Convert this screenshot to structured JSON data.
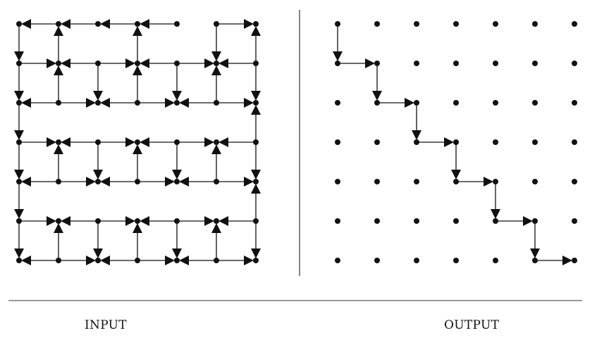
{
  "grid": {
    "rows": 7,
    "cols": 7
  },
  "colors": {
    "ink": "#111111"
  },
  "input": {
    "label": "INPUT",
    "edges": [
      {
        "r": 0,
        "c": 0,
        "d": "S"
      },
      {
        "r": 0,
        "c": 1,
        "d": "W"
      },
      {
        "r": 0,
        "c": 2,
        "d": "W"
      },
      {
        "r": 0,
        "c": 3,
        "d": "W"
      },
      {
        "r": 0,
        "c": 4,
        "d": "W"
      },
      {
        "r": 0,
        "c": 5,
        "d": "E"
      },
      {
        "r": 0,
        "c": 5,
        "d": "S"
      },
      {
        "r": 1,
        "c": 1,
        "d": "N"
      },
      {
        "r": 1,
        "c": 3,
        "d": "N"
      },
      {
        "r": 1,
        "c": 0,
        "d": "S"
      },
      {
        "r": 1,
        "c": 0,
        "d": "E"
      },
      {
        "r": 1,
        "c": 2,
        "d": "W"
      },
      {
        "r": 1,
        "c": 2,
        "d": "E"
      },
      {
        "r": 1,
        "c": 4,
        "d": "W"
      },
      {
        "r": 1,
        "c": 4,
        "d": "E"
      },
      {
        "r": 1,
        "c": 6,
        "d": "W"
      },
      {
        "r": 1,
        "c": 2,
        "d": "S"
      },
      {
        "r": 1,
        "c": 4,
        "d": "S"
      },
      {
        "r": 1,
        "c": 6,
        "d": "N"
      },
      {
        "r": 1,
        "c": 6,
        "d": "S"
      },
      {
        "r": 2,
        "c": 1,
        "d": "W"
      },
      {
        "r": 2,
        "c": 1,
        "d": "E"
      },
      {
        "r": 2,
        "c": 3,
        "d": "W"
      },
      {
        "r": 2,
        "c": 3,
        "d": "E"
      },
      {
        "r": 2,
        "c": 5,
        "d": "W"
      },
      {
        "r": 2,
        "c": 5,
        "d": "E"
      },
      {
        "r": 2,
        "c": 1,
        "d": "N"
      },
      {
        "r": 2,
        "c": 3,
        "d": "N"
      },
      {
        "r": 2,
        "c": 5,
        "d": "N"
      },
      {
        "r": 2,
        "c": 0,
        "d": "S"
      },
      {
        "r": 3,
        "c": 0,
        "d": "E"
      },
      {
        "r": 3,
        "c": 2,
        "d": "W"
      },
      {
        "r": 3,
        "c": 2,
        "d": "E"
      },
      {
        "r": 3,
        "c": 4,
        "d": "W"
      },
      {
        "r": 3,
        "c": 4,
        "d": "E"
      },
      {
        "r": 3,
        "c": 6,
        "d": "W"
      },
      {
        "r": 3,
        "c": 2,
        "d": "S"
      },
      {
        "r": 3,
        "c": 4,
        "d": "S"
      },
      {
        "r": 3,
        "c": 6,
        "d": "N"
      },
      {
        "r": 3,
        "c": 6,
        "d": "S"
      },
      {
        "r": 3,
        "c": 0,
        "d": "S"
      },
      {
        "r": 4,
        "c": 1,
        "d": "W"
      },
      {
        "r": 4,
        "c": 1,
        "d": "E"
      },
      {
        "r": 4,
        "c": 3,
        "d": "W"
      },
      {
        "r": 4,
        "c": 3,
        "d": "E"
      },
      {
        "r": 4,
        "c": 5,
        "d": "W"
      },
      {
        "r": 4,
        "c": 5,
        "d": "E"
      },
      {
        "r": 4,
        "c": 1,
        "d": "N"
      },
      {
        "r": 4,
        "c": 3,
        "d": "N"
      },
      {
        "r": 4,
        "c": 5,
        "d": "N"
      },
      {
        "r": 4,
        "c": 0,
        "d": "S"
      },
      {
        "r": 5,
        "c": 0,
        "d": "E"
      },
      {
        "r": 5,
        "c": 2,
        "d": "W"
      },
      {
        "r": 5,
        "c": 2,
        "d": "E"
      },
      {
        "r": 5,
        "c": 4,
        "d": "W"
      },
      {
        "r": 5,
        "c": 4,
        "d": "E"
      },
      {
        "r": 5,
        "c": 6,
        "d": "W"
      },
      {
        "r": 5,
        "c": 2,
        "d": "S"
      },
      {
        "r": 5,
        "c": 4,
        "d": "S"
      },
      {
        "r": 5,
        "c": 6,
        "d": "N"
      },
      {
        "r": 5,
        "c": 6,
        "d": "S"
      },
      {
        "r": 5,
        "c": 0,
        "d": "S"
      },
      {
        "r": 6,
        "c": 1,
        "d": "W"
      },
      {
        "r": 6,
        "c": 1,
        "d": "E"
      },
      {
        "r": 6,
        "c": 3,
        "d": "W"
      },
      {
        "r": 6,
        "c": 3,
        "d": "E"
      },
      {
        "r": 6,
        "c": 5,
        "d": "W"
      },
      {
        "r": 6,
        "c": 5,
        "d": "E"
      },
      {
        "r": 6,
        "c": 1,
        "d": "N"
      },
      {
        "r": 6,
        "c": 3,
        "d": "N"
      },
      {
        "r": 6,
        "c": 5,
        "d": "N"
      }
    ]
  },
  "output": {
    "label": "OUTPUT",
    "path": [
      [
        0,
        0
      ],
      [
        1,
        0
      ],
      [
        1,
        1
      ],
      [
        2,
        1
      ],
      [
        2,
        2
      ],
      [
        3,
        2
      ],
      [
        3,
        3
      ],
      [
        4,
        3
      ],
      [
        4,
        4
      ],
      [
        5,
        4
      ],
      [
        5,
        5
      ],
      [
        6,
        5
      ],
      [
        6,
        6
      ]
    ]
  }
}
